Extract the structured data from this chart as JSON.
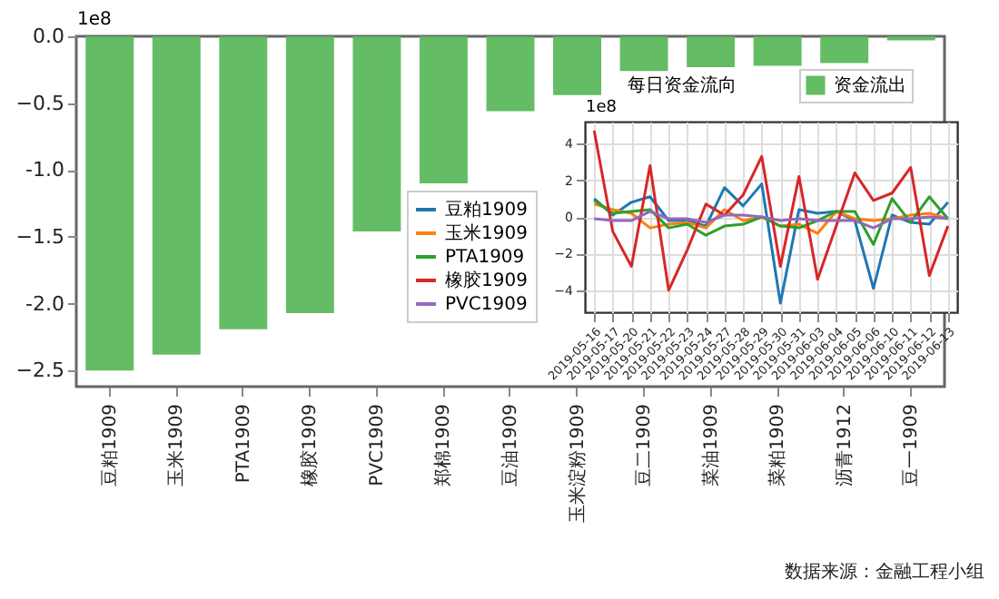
{
  "chart_data": [
    {
      "type": "bar",
      "ylabel": "1e8",
      "categories": [
        "豆粕1909",
        "玉米1909",
        "PTA1909",
        "橡胶1909",
        "PVC1909",
        "郑棉1909",
        "豆油1909",
        "玉米淀粉1909",
        "豆二1909",
        "菜油1909",
        "菜粕1909",
        "沥青1912",
        "豆一1909"
      ],
      "series": [
        {
          "name": "资金流出",
          "color": "#5cb85c",
          "values": [
            -2.5,
            -2.38,
            -2.19,
            -2.07,
            -1.46,
            -1.1,
            -0.56,
            -0.44,
            -0.26,
            -0.23,
            -0.22,
            -0.2,
            -0.03
          ]
        }
      ],
      "ylim": [
        -2.62,
        0
      ],
      "yticks": [
        {
          "value": 0,
          "label": "0.0"
        },
        -0.5,
        {
          "value": -1,
          "label": "-1.0"
        },
        -1.5,
        {
          "value": -2,
          "label": "-2.0"
        },
        -2.5
      ],
      "legend": "top right",
      "annotations": [
        "数据来源：金融工程小组"
      ]
    },
    {
      "type": "line",
      "title": "每日资金流向",
      "ylabel": "1e8",
      "categories": [
        "2019-05-16",
        "2019-05-17",
        "2019-05-20",
        "2019-05-21",
        "2019-05-22",
        "2019-05-23",
        "2019-05-24",
        "2019-05-27",
        "2019-05-28",
        "2019-05-29",
        "2019-05-30",
        "2019-05-31",
        "2019-06-03",
        "2019-06-04",
        "2019-06-05",
        "2019-06-06",
        "2019-06-10",
        "2019-06-11",
        "2019-06-12",
        "2019-06-13"
      ],
      "series": [
        {
          "name": "豆粕1909",
          "color": "#1f77b4",
          "values": [
            1.0,
            0.1,
            0.8,
            1.1,
            -0.2,
            -0.2,
            -0.5,
            1.6,
            0.6,
            1.8,
            -4.7,
            0.4,
            0.2,
            0.3,
            -0.2,
            -3.9,
            0.1,
            -0.3,
            -0.4,
            0.8
          ]
        },
        {
          "name": "玉米1909",
          "color": "#ff7f0e",
          "values": [
            0.7,
            0.4,
            0.2,
            -0.6,
            -0.4,
            -0.3,
            -0.6,
            0.4,
            -0.2,
            0.0,
            -0.5,
            -0.4,
            -0.9,
            0.3,
            -0.1,
            -0.2,
            -0.1,
            0.1,
            0.2,
            -0.1
          ]
        },
        {
          "name": "PTA1909",
          "color": "#2ca02c",
          "values": [
            0.9,
            0.2,
            0.3,
            0.4,
            -0.6,
            -0.4,
            -1.0,
            -0.5,
            -0.4,
            0.0,
            -0.5,
            -0.6,
            -0.2,
            0.3,
            0.3,
            -1.5,
            1.0,
            -0.3,
            1.1,
            -0.1
          ]
        },
        {
          "name": "橡胶1909",
          "color": "#d62728",
          "values": [
            4.7,
            -0.8,
            -2.7,
            2.8,
            -4.0,
            -1.8,
            0.7,
            0.1,
            1.2,
            3.3,
            -2.7,
            2.2,
            -3.4,
            -0.5,
            2.4,
            0.9,
            1.3,
            2.7,
            -3.2,
            -0.5
          ]
        },
        {
          "name": "PVC1909",
          "color": "#9467bd",
          "values": [
            -0.1,
            -0.2,
            -0.2,
            0.3,
            -0.1,
            -0.1,
            -0.3,
            0.1,
            0.1,
            0.0,
            -0.2,
            -0.1,
            -0.2,
            -0.2,
            -0.2,
            -0.6,
            -0.1,
            -0.1,
            0.0,
            -0.1
          ]
        }
      ],
      "ylim": [
        -5.2,
        5.2
      ],
      "yticks": [
        -4,
        -2,
        0,
        2,
        4
      ],
      "grid": true,
      "legend": "left",
      "marker": "none",
      "line_style": "solid"
    }
  ]
}
